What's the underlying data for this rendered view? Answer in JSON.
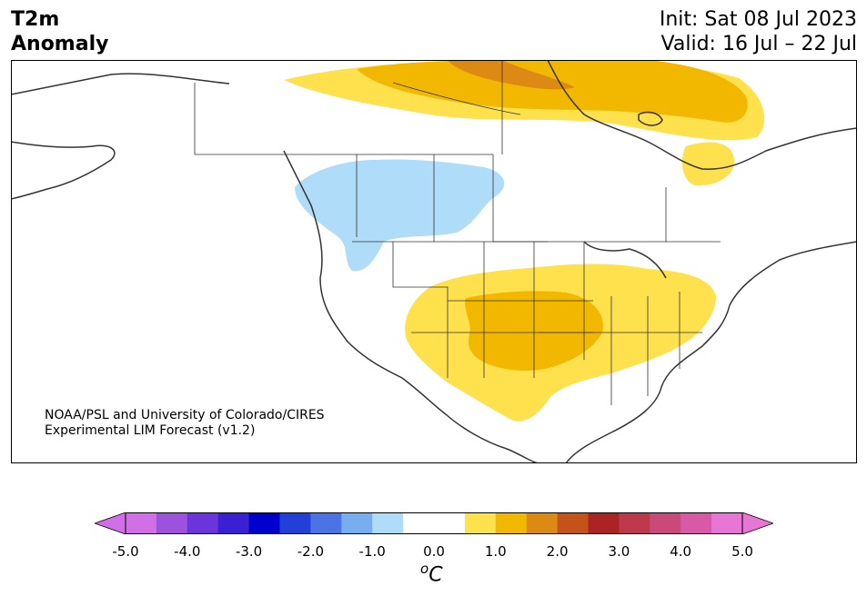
{
  "header": {
    "title_line1": "T2m",
    "title_line2": "Anomaly",
    "init": "Init: Sat 08 Jul 2023",
    "valid": "Valid: 16 Jul – 22 Jul"
  },
  "credit": {
    "line1": "NOAA/PSL and University of Colorado/CIRES",
    "line2": "Experimental LIM Forecast (v1.2)"
  },
  "colorbar": {
    "unit_base": "C",
    "unit_sup": "o",
    "ticks": [
      "-5.0",
      "-4.0",
      "-3.0",
      "-2.0",
      "-1.0",
      "0.0",
      "1.0",
      "2.0",
      "3.0",
      "4.0",
      "5.0"
    ],
    "colors": [
      "#d170e6",
      "#9b52dd",
      "#6a36d9",
      "#3a20d3",
      "#0000cc",
      "#2240d8",
      "#4c73e6",
      "#78aef0",
      "#aedcf9",
      "#ffffff",
      "#ffffff",
      "#ffe04d",
      "#f2b800",
      "#dd8a14",
      "#c4531a",
      "#aa2424",
      "#bd3a4a",
      "#c94a78",
      "#d85aa6",
      "#e876d5"
    ],
    "under_color": "#d170e6",
    "over_color": "#e876d5"
  },
  "map": {
    "anomaly_colors": {
      "light_blue": "#aedcf9",
      "yellow": "#ffe04d",
      "orange": "#f2b800",
      "dark_orange": "#dd8a14"
    }
  }
}
